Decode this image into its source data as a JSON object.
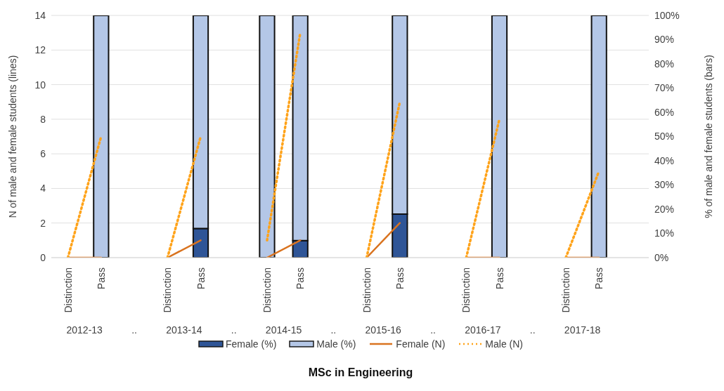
{
  "chart_data": {
    "type": "bar",
    "title": "MSc in Engineering",
    "ylabel": "N of male and female students (lines)",
    "y2label": "% of male and female students (bars)",
    "categories": [
      "Distinction",
      "Pass",
      null,
      "Distinction",
      "Pass",
      null,
      "Distinction",
      "Pass",
      null,
      "Distinction",
      "Pass",
      null,
      "Distinction",
      "Pass",
      null,
      "Distinction",
      "Pass",
      null
    ],
    "annotations": [
      "2012-13",
      "..",
      "2013-14",
      "..",
      "2014-15",
      "..",
      "2015-16",
      "..",
      "2016-17",
      "..",
      "2017-18"
    ],
    "series": [
      {
        "name": "Female (%)",
        "axis": "y2",
        "color": "#2f5597",
        "values": [
          null,
          0,
          null,
          null,
          12,
          null,
          0,
          7,
          null,
          null,
          18,
          null,
          null,
          0,
          null,
          null,
          0,
          null
        ]
      },
      {
        "name": "Male (%)",
        "axis": "y2",
        "color": "#b4c7e7",
        "values": [
          null,
          100,
          null,
          null,
          88,
          null,
          100,
          93,
          null,
          null,
          82,
          null,
          null,
          100,
          null,
          null,
          100,
          null
        ]
      },
      {
        "name": "Female (N)",
        "type": "line",
        "axis": "y",
        "color": "#d9731f",
        "line_style": "solid",
        "values": [
          0,
          0,
          null,
          0,
          1,
          null,
          0,
          1,
          null,
          0,
          2,
          null,
          0,
          0,
          null,
          0,
          0,
          null
        ]
      },
      {
        "name": "Male (N)",
        "type": "line",
        "axis": "y",
        "color": "#ffa31a",
        "line_style": "dotted",
        "values": [
          0,
          7,
          null,
          0,
          7,
          null,
          1,
          13,
          null,
          0,
          9,
          null,
          0,
          8,
          null,
          0,
          5,
          null
        ]
      }
    ],
    "stacked": true,
    "ylim": [
      0,
      14
    ],
    "yticks": [
      0,
      2,
      4,
      6,
      8,
      10,
      12,
      14
    ],
    "y2lim": [
      0,
      100
    ],
    "y2ticks": [
      {
        "value": 0,
        "label": "0%"
      },
      {
        "value": 10,
        "label": "10%"
      },
      {
        "value": 20,
        "label": "20%"
      },
      {
        "value": 30,
        "label": "30%"
      },
      {
        "value": 40,
        "label": "40%"
      },
      {
        "value": 50,
        "label": "50%"
      },
      {
        "value": 60,
        "label": "60%"
      },
      {
        "value": 70,
        "label": "70%"
      },
      {
        "value": 80,
        "label": "80%"
      },
      {
        "value": 90,
        "label": "90%"
      },
      {
        "value": 100,
        "label": "100%"
      }
    ],
    "grid": "y",
    "legend": "bottom"
  }
}
